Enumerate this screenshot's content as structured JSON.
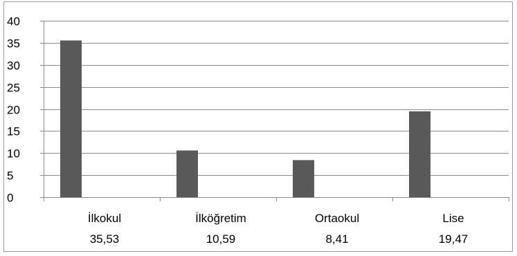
{
  "chart_data": {
    "type": "bar",
    "title": "",
    "xlabel": "",
    "ylabel": "",
    "categories": [
      "İlkokul",
      "İlköğretim",
      "Ortaokul",
      "Lise"
    ],
    "values": [
      35.53,
      10.59,
      8.41,
      19.47
    ],
    "value_labels": [
      "35,53",
      "10,59",
      "8,41",
      "19,47"
    ],
    "ylim": [
      0,
      40
    ],
    "yticks": [
      0,
      5,
      10,
      15,
      20,
      25,
      30,
      35,
      40
    ],
    "grid": true,
    "legend": "none",
    "bar_color": "#595959",
    "grid_color": "#8c8c8c"
  }
}
